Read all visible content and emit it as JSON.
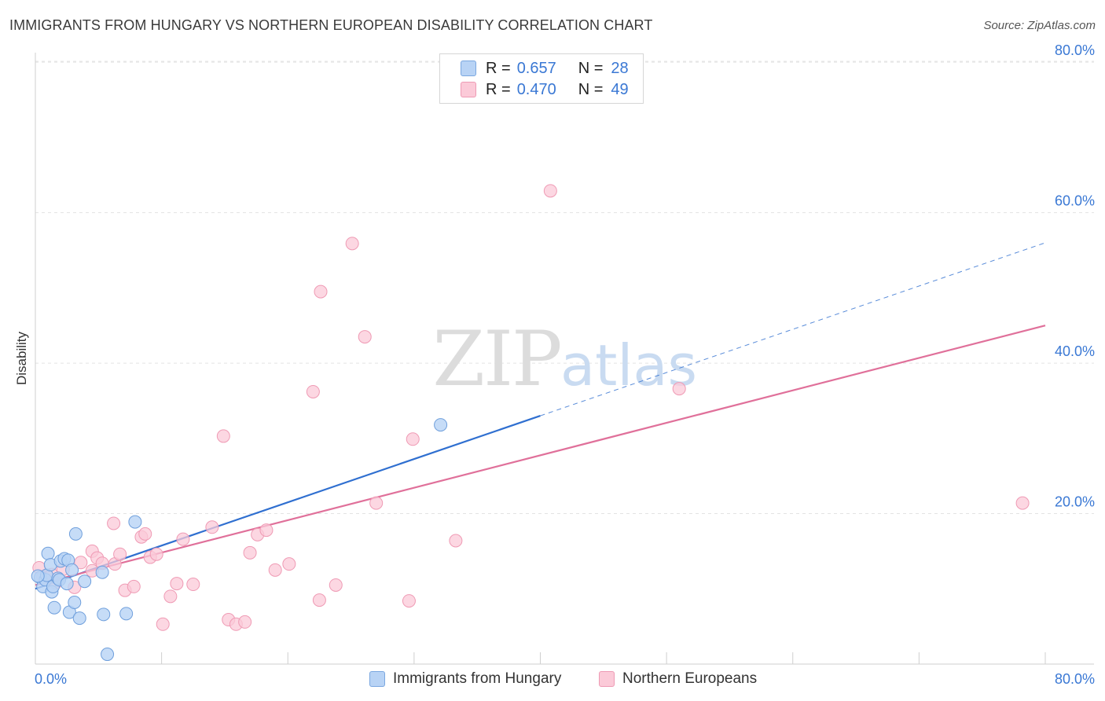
{
  "title": "IMMIGRANTS FROM HUNGARY VS NORTHERN EUROPEAN DISABILITY CORRELATION CHART",
  "source": "Source: ZipAtlas.com",
  "watermark": {
    "zip": "ZIP",
    "atlas": "atlas"
  },
  "legend": {
    "r_label": "R =",
    "n_label": "N =",
    "hungary_r": "0.657",
    "hungary_n": "28",
    "northern_r": "0.470",
    "northern_n": "49"
  },
  "colors": {
    "blue_fill": "#b8d3f5",
    "blue_stroke": "#6f9fdc",
    "blue_line": "#2f6fd0",
    "pink_fill": "#fbcad8",
    "pink_stroke": "#ef9ab4",
    "pink_line": "#e0709a",
    "tick_text": "#3a78d4"
  },
  "chart_data": {
    "type": "scatter",
    "title": "IMMIGRANTS FROM HUNGARY VS NORTHERN EUROPEAN DISABILITY CORRELATION CHART",
    "xlabel": "",
    "ylabel": "Disability",
    "xlim": [
      0,
      80
    ],
    "ylim": [
      0,
      82
    ],
    "x_tick_labels": [
      "0.0%",
      "80.0%"
    ],
    "y_ticks": [
      20,
      40,
      60,
      80
    ],
    "y_tick_labels": [
      "20.0%",
      "40.0%",
      "60.0%",
      "80.0%"
    ],
    "grid": true,
    "series": [
      {
        "name": "Immigrants from Hungary",
        "color": "blue",
        "points": [
          [
            0.4,
            11.5
          ],
          [
            0.6,
            10.3
          ],
          [
            0.8,
            11.2
          ],
          [
            0.9,
            11.8
          ],
          [
            1.0,
            14.7
          ],
          [
            1.2,
            13.2
          ],
          [
            1.3,
            9.6
          ],
          [
            1.4,
            10.3
          ],
          [
            1.5,
            7.5
          ],
          [
            1.8,
            11.4
          ],
          [
            1.9,
            11.2
          ],
          [
            2.0,
            13.7
          ],
          [
            2.3,
            14.0
          ],
          [
            2.5,
            10.7
          ],
          [
            2.6,
            13.8
          ],
          [
            2.7,
            6.9
          ],
          [
            2.9,
            12.5
          ],
          [
            3.1,
            8.2
          ],
          [
            3.2,
            17.3
          ],
          [
            3.5,
            6.1
          ],
          [
            3.9,
            11.0
          ],
          [
            5.3,
            12.2
          ],
          [
            5.4,
            6.6
          ],
          [
            5.7,
            1.3
          ],
          [
            7.2,
            6.7
          ],
          [
            7.9,
            18.9
          ],
          [
            32.1,
            31.8
          ],
          [
            0.2,
            11.7
          ]
        ],
        "trend": {
          "x_start": 0,
          "y_start": 10.0,
          "x_end_solid": 40,
          "y_end_solid": 33.0,
          "x_end_dashed": 80,
          "y_end_dashed": 56.0
        }
      },
      {
        "name": "Northern Europeans",
        "color": "pink",
        "points": [
          [
            0.3,
            12.8
          ],
          [
            0.6,
            11.6
          ],
          [
            0.9,
            11.4
          ],
          [
            1.3,
            11.9
          ],
          [
            2.2,
            12.6
          ],
          [
            3.1,
            10.2
          ],
          [
            3.6,
            13.5
          ],
          [
            4.5,
            12.4
          ],
          [
            4.5,
            15.0
          ],
          [
            4.9,
            14.1
          ],
          [
            5.3,
            13.4
          ],
          [
            6.2,
            18.7
          ],
          [
            6.3,
            13.3
          ],
          [
            6.7,
            14.6
          ],
          [
            7.1,
            9.8
          ],
          [
            7.8,
            10.3
          ],
          [
            8.4,
            16.9
          ],
          [
            8.7,
            17.3
          ],
          [
            9.1,
            14.2
          ],
          [
            9.6,
            14.6
          ],
          [
            10.1,
            5.3
          ],
          [
            10.7,
            9.0
          ],
          [
            11.2,
            10.7
          ],
          [
            11.7,
            16.6
          ],
          [
            12.5,
            10.6
          ],
          [
            14.0,
            18.2
          ],
          [
            14.9,
            30.3
          ],
          [
            15.3,
            5.9
          ],
          [
            15.9,
            5.3
          ],
          [
            16.6,
            5.6
          ],
          [
            17.0,
            14.8
          ],
          [
            17.6,
            17.2
          ],
          [
            18.3,
            17.8
          ],
          [
            19.0,
            12.5
          ],
          [
            20.1,
            13.3
          ],
          [
            22.0,
            36.2
          ],
          [
            22.5,
            8.5
          ],
          [
            22.6,
            49.5
          ],
          [
            23.8,
            10.5
          ],
          [
            25.1,
            55.9
          ],
          [
            26.1,
            43.5
          ],
          [
            27.0,
            21.4
          ],
          [
            29.6,
            8.4
          ],
          [
            29.9,
            29.9
          ],
          [
            33.3,
            16.4
          ],
          [
            40.8,
            62.9
          ],
          [
            51.0,
            36.6
          ],
          [
            78.2,
            21.4
          ],
          [
            1.6,
            10.8
          ]
        ],
        "trend": {
          "x_start": 0,
          "y_start": 10.5,
          "x_end": 80,
          "y_end": 45.0
        }
      }
    ]
  },
  "bottom_legend": {
    "hungary": "Immigrants from Hungary",
    "northern": "Northern Europeans"
  }
}
